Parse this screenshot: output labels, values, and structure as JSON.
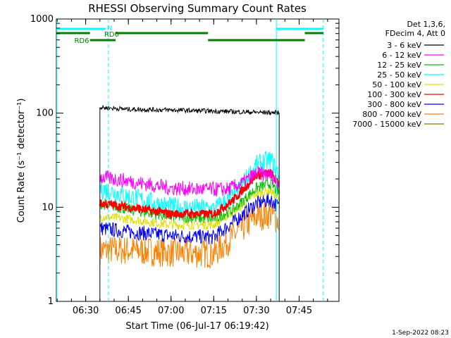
{
  "chart_data": {
    "type": "line",
    "title": "RHESSI Observing Summary Count Rates",
    "xlabel": "Start Time (06-Jul-17 06:19:42)",
    "ylabel": "Count Rate (s⁻¹ detector⁻¹)",
    "x_range": [
      "06:19:42",
      "07:59:00"
    ],
    "x_ticks": [
      "06:30",
      "06:45",
      "07:00",
      "07:15",
      "07:30",
      "07:45"
    ],
    "y_scale": "log",
    "ylim": [
      1,
      1000
    ],
    "y_ticks": [
      "1",
      "10",
      "100",
      "1000"
    ],
    "grid": false,
    "legend_position": "right",
    "legend_header": [
      "Det 1,3,6,",
      "FDecim 4, Att 0"
    ],
    "series": [
      {
        "name": "3 - 6 keV",
        "color": "#000000",
        "x": [
          "06:35",
          "06:45",
          "07:00",
          "07:15",
          "07:25",
          "07:30",
          "07:38"
        ],
        "values": [
          115,
          110,
          108,
          105,
          103,
          102,
          101
        ]
      },
      {
        "name": "6 - 12 keV",
        "color": "#ff00ff",
        "x": [
          "06:35",
          "06:45",
          "07:00",
          "07:10",
          "07:20",
          "07:25",
          "07:30",
          "07:35",
          "07:38"
        ],
        "values": [
          21,
          19,
          16,
          15.5,
          15.5,
          18,
          23,
          22,
          18
        ]
      },
      {
        "name": "12 - 25 keV",
        "color": "#00c000",
        "x": [
          "06:35",
          "06:45",
          "07:00",
          "07:15",
          "07:22",
          "07:30",
          "07:35",
          "07:38"
        ],
        "values": [
          11,
          9.5,
          8,
          7.5,
          9.5,
          16,
          18,
          14
        ]
      },
      {
        "name": "25 - 50 keV",
        "color": "#00ffff",
        "x": [
          "06:35",
          "06:45",
          "07:00",
          "07:15",
          "07:22",
          "07:30",
          "07:35",
          "07:38"
        ],
        "values": [
          16,
          13,
          10,
          9.5,
          13,
          28,
          32,
          22
        ]
      },
      {
        "name": "50 - 100 keV",
        "color": "#e0e000",
        "x": [
          "06:35",
          "06:45",
          "07:00",
          "07:15",
          "07:22",
          "07:30",
          "07:35",
          "07:38"
        ],
        "values": [
          8,
          7.5,
          6.5,
          6.5,
          9,
          14,
          15,
          12
        ]
      },
      {
        "name": "100 - 300 keV",
        "color": "#ff0000",
        "x": [
          "06:35",
          "06:45",
          "07:00",
          "07:15",
          "07:22",
          "07:30",
          "07:35",
          "07:38"
        ],
        "values": [
          11,
          10,
          8.5,
          8.5,
          12,
          22,
          23,
          17
        ]
      },
      {
        "name": "300 - 800 keV",
        "color": "#0000ff",
        "x": [
          "06:35",
          "06:45",
          "07:00",
          "07:15",
          "07:22",
          "07:30",
          "07:35",
          "07:38"
        ],
        "values": [
          6,
          5.5,
          5,
          4.8,
          7,
          11,
          12,
          10
        ]
      },
      {
        "name": "800 - 7000 keV",
        "color": "#ff8000",
        "x": [
          "06:35",
          "06:45",
          "07:00",
          "07:15",
          "07:22",
          "07:30",
          "07:35",
          "07:38"
        ],
        "values": [
          3.5,
          3.5,
          3.3,
          3.2,
          5,
          8,
          8.5,
          7
        ]
      },
      {
        "name": "7000 - 15000 keV",
        "color": "#808000",
        "x": [],
        "values": []
      }
    ],
    "annotations": {
      "flags": [
        {
          "label": "N",
          "color": "#00ffff"
        },
        {
          "label": "RD0",
          "color": "#008000"
        },
        {
          "label": "RD6",
          "color": "#008000"
        }
      ]
    }
  },
  "footer": {
    "timestamp": "1-Sep-2022 08:23"
  }
}
